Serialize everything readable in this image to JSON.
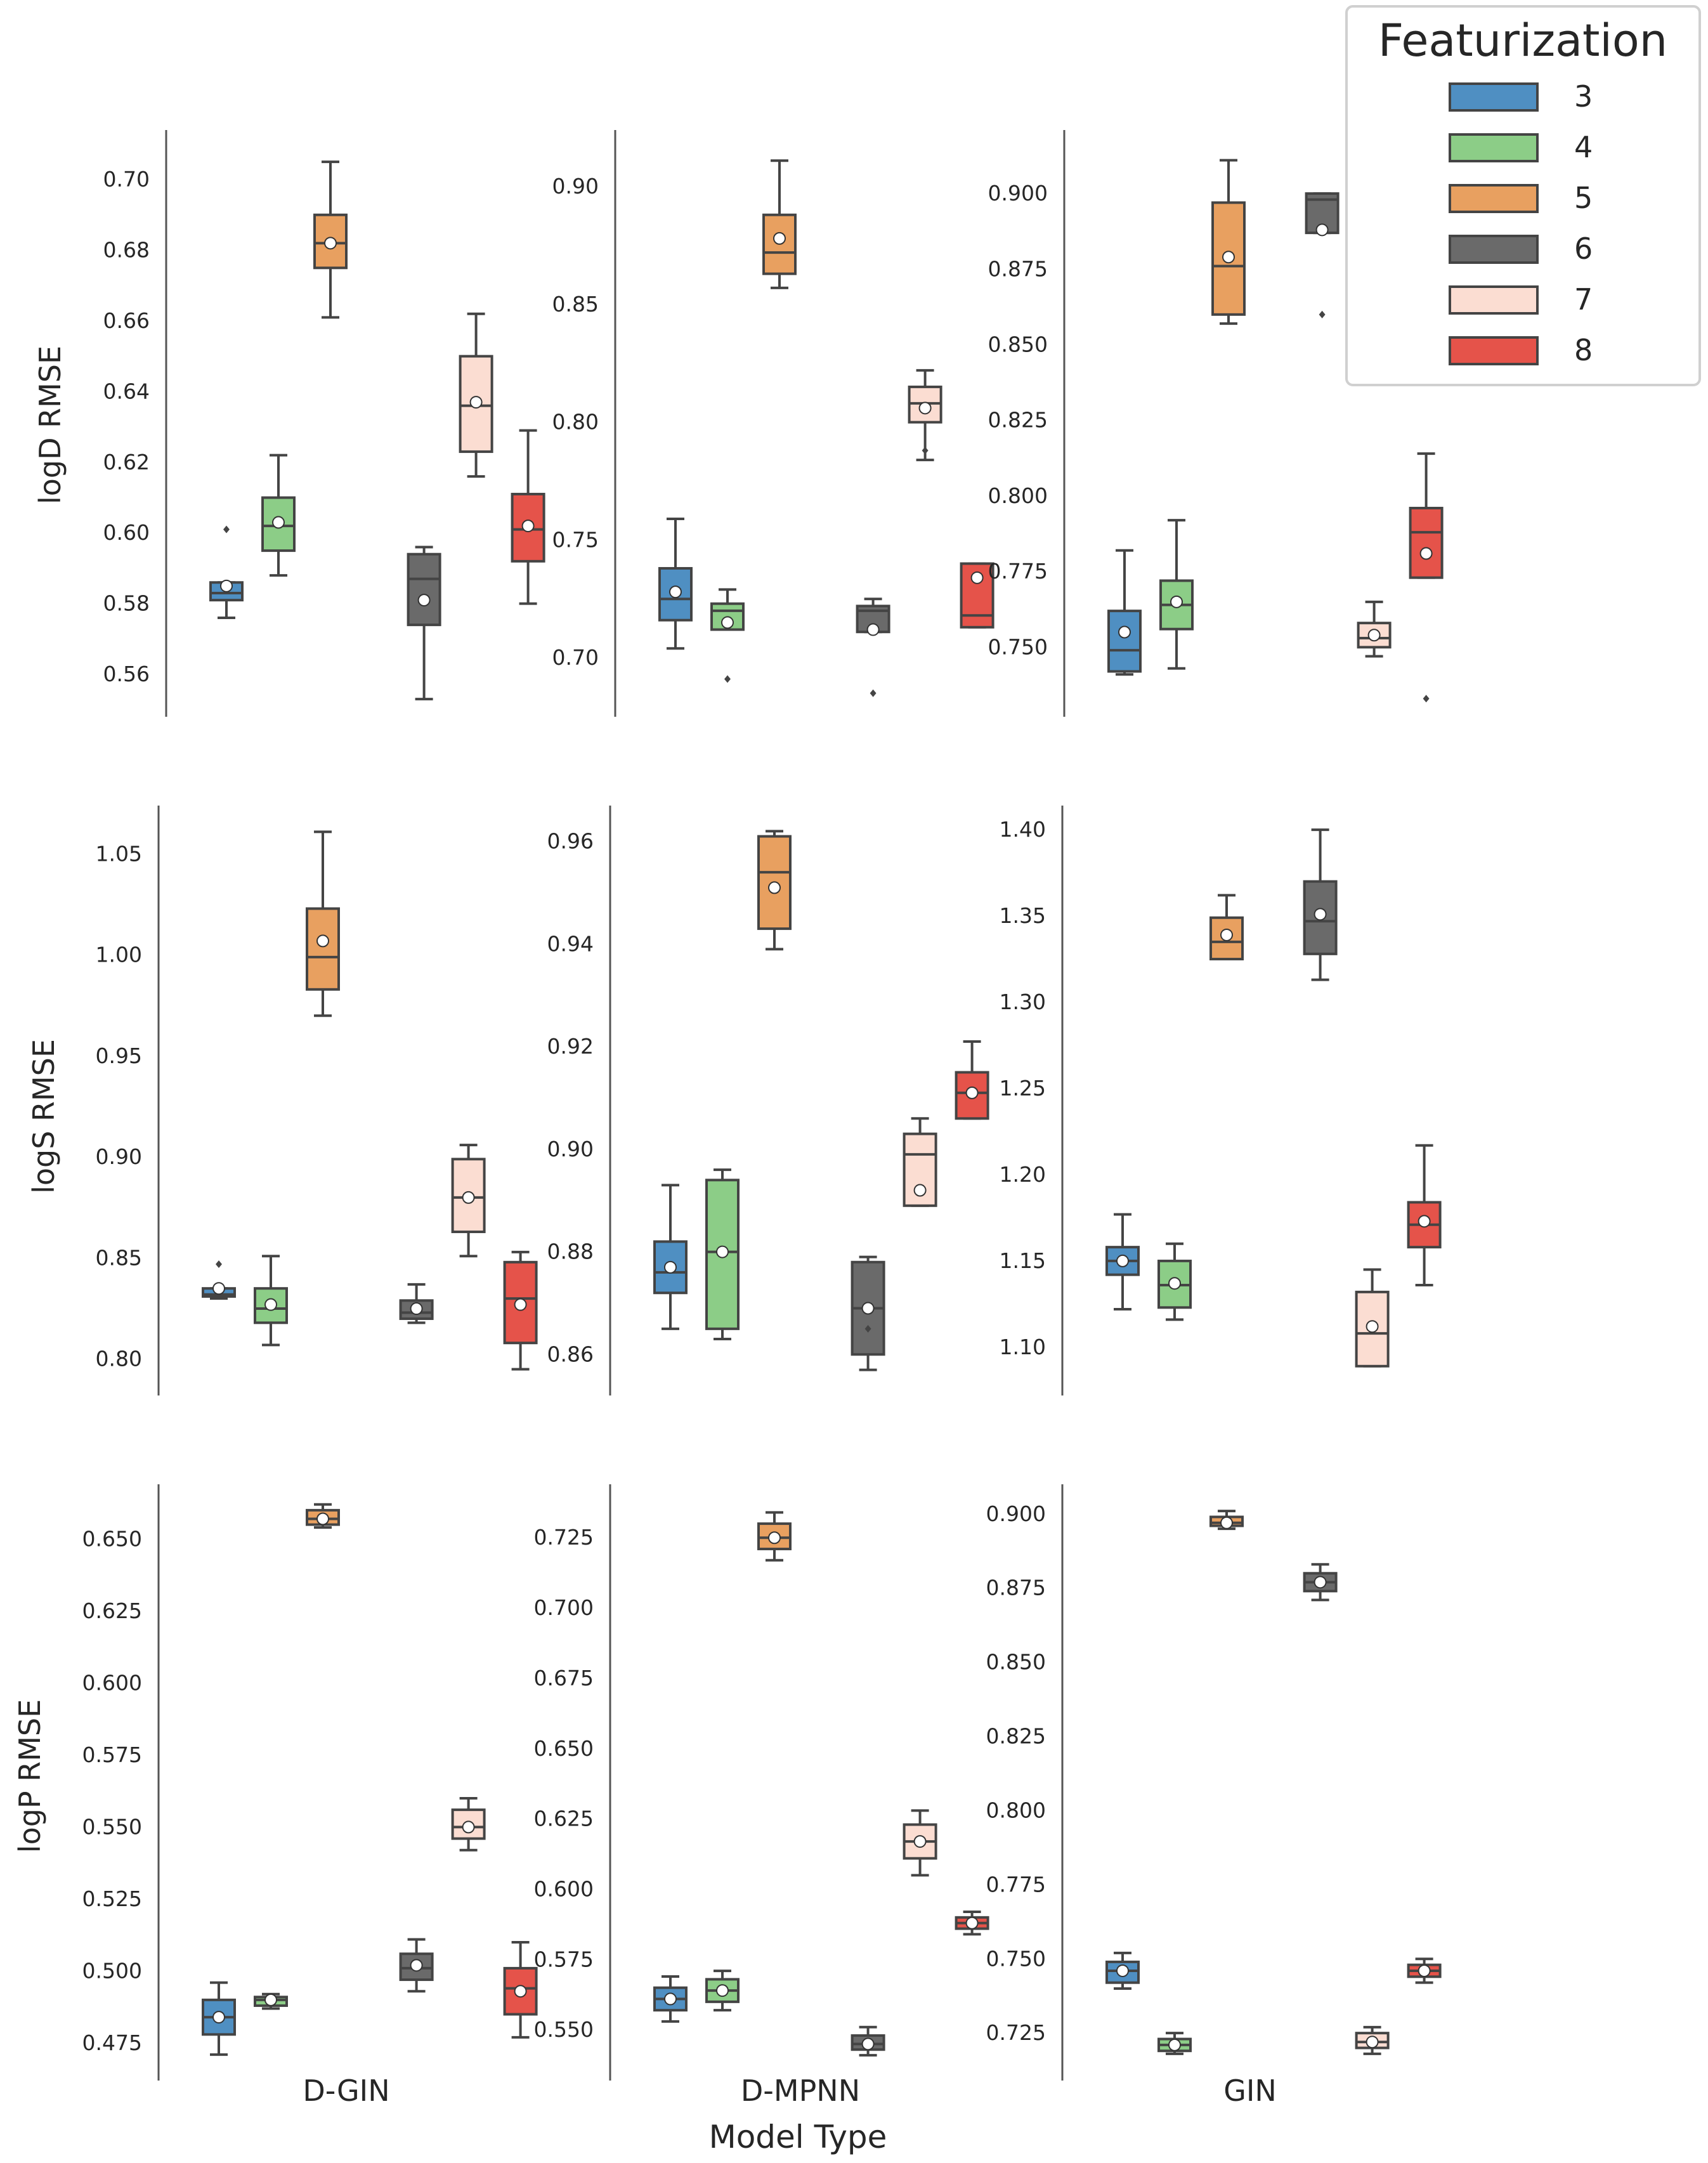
{
  "chart_data": {
    "type": "box",
    "title": "",
    "xlabel": "Model Type",
    "categories": [
      "D-GIN",
      "D-MPNN",
      "GIN"
    ],
    "legend": {
      "title": "Featurization",
      "placement": "top-right",
      "entries": [
        "3",
        "4",
        "5",
        "6",
        "7",
        "8"
      ],
      "colors": [
        "#4f8fc2",
        "#8ccd87",
        "#e8a060",
        "#6a6a6a",
        "#fbddd2",
        "#e5534a"
      ]
    },
    "rows": [
      {
        "ylabel": "logD RMSE",
        "panels": [
          {
            "model": "D-GIN",
            "ylim": [
              0.548,
              0.714
            ],
            "ticks": [
              "0.56",
              "0.58",
              "0.60",
              "0.62",
              "0.64",
              "0.66",
              "0.68",
              "0.70"
            ],
            "boxes": [
              {
                "feat": "3",
                "wlo": 0.576,
                "q1": 0.581,
                "med": 0.583,
                "q3": 0.586,
                "whi": 0.586,
                "mean": 0.585,
                "outliers": [
                  0.601
                ]
              },
              {
                "feat": "4",
                "wlo": 0.588,
                "q1": 0.595,
                "med": 0.602,
                "q3": 0.61,
                "whi": 0.622,
                "mean": 0.603,
                "outliers": []
              },
              {
                "feat": "5",
                "wlo": 0.661,
                "q1": 0.675,
                "med": 0.682,
                "q3": 0.69,
                "whi": 0.705,
                "mean": 0.682,
                "outliers": []
              },
              {
                "feat": "6",
                "wlo": 0.553,
                "q1": 0.574,
                "med": 0.587,
                "q3": 0.594,
                "whi": 0.596,
                "mean": 0.581,
                "outliers": []
              },
              {
                "feat": "7",
                "wlo": 0.616,
                "q1": 0.623,
                "med": 0.636,
                "q3": 0.65,
                "whi": 0.662,
                "mean": 0.637,
                "outliers": []
              },
              {
                "feat": "8",
                "wlo": 0.58,
                "q1": 0.592,
                "med": 0.601,
                "q3": 0.611,
                "whi": 0.629,
                "mean": 0.602,
                "outliers": []
              }
            ]
          },
          {
            "model": "D-MPNN",
            "ylim": [
              0.675,
              0.924
            ],
            "ticks": [
              "0.70",
              "0.75",
              "0.80",
              "0.85",
              "0.90"
            ],
            "boxes": [
              {
                "feat": "3",
                "wlo": 0.704,
                "q1": 0.716,
                "med": 0.725,
                "q3": 0.738,
                "whi": 0.759,
                "mean": 0.728,
                "outliers": []
              },
              {
                "feat": "4",
                "wlo": 0.712,
                "q1": 0.712,
                "med": 0.72,
                "q3": 0.723,
                "whi": 0.729,
                "mean": 0.715,
                "outliers": [
                  0.691
                ]
              },
              {
                "feat": "5",
                "wlo": 0.857,
                "q1": 0.863,
                "med": 0.872,
                "q3": 0.888,
                "whi": 0.911,
                "mean": 0.878,
                "outliers": []
              },
              {
                "feat": "6",
                "wlo": 0.711,
                "q1": 0.711,
                "med": 0.72,
                "q3": 0.722,
                "whi": 0.725,
                "mean": 0.712,
                "outliers": [
                  0.685
                ]
              },
              {
                "feat": "7",
                "wlo": 0.784,
                "q1": 0.8,
                "med": 0.808,
                "q3": 0.815,
                "whi": 0.822,
                "mean": 0.806,
                "outliers": [
                  0.788
                ]
              },
              {
                "feat": "8",
                "wlo": 0.713,
                "q1": 0.713,
                "med": 0.718,
                "q3": 0.74,
                "whi": 0.74,
                "mean": 0.734,
                "outliers": []
              }
            ]
          },
          {
            "model": "GIN",
            "ylim": [
              0.727,
              0.921
            ],
            "ticks": [
              "0.750",
              "0.775",
              "0.800",
              "0.825",
              "0.850",
              "0.875",
              "0.900"
            ],
            "boxes": [
              {
                "feat": "3",
                "wlo": 0.741,
                "q1": 0.742,
                "med": 0.749,
                "q3": 0.762,
                "whi": 0.782,
                "mean": 0.755,
                "outliers": []
              },
              {
                "feat": "4",
                "wlo": 0.743,
                "q1": 0.756,
                "med": 0.764,
                "q3": 0.772,
                "whi": 0.792,
                "mean": 0.765,
                "outliers": []
              },
              {
                "feat": "5",
                "wlo": 0.857,
                "q1": 0.86,
                "med": 0.876,
                "q3": 0.897,
                "whi": 0.911,
                "mean": 0.879,
                "outliers": []
              },
              {
                "feat": "6",
                "wlo": 0.887,
                "q1": 0.887,
                "med": 0.898,
                "q3": 0.9,
                "whi": 0.9,
                "mean": 0.888,
                "outliers": [
                  0.86
                ]
              },
              {
                "feat": "7",
                "wlo": 0.747,
                "q1": 0.75,
                "med": 0.753,
                "q3": 0.758,
                "whi": 0.765,
                "mean": 0.754,
                "outliers": []
              },
              {
                "feat": "8",
                "wlo": 0.773,
                "q1": 0.773,
                "med": 0.788,
                "q3": 0.796,
                "whi": 0.814,
                "mean": 0.781,
                "outliers": [
                  0.733
                ]
              }
            ]
          }
        ]
      },
      {
        "ylabel": "logS RMSE",
        "panels": [
          {
            "model": "D-GIN",
            "ylim": [
              0.782,
              1.074
            ],
            "ticks": [
              "0.80",
              "0.85",
              "0.90",
              "0.95",
              "1.00",
              "1.05"
            ],
            "boxes": [
              {
                "feat": "3",
                "wlo": 0.83,
                "q1": 0.831,
                "med": 0.832,
                "q3": 0.835,
                "whi": 0.835,
                "mean": 0.835,
                "outliers": [
                  0.847
                ]
              },
              {
                "feat": "4",
                "wlo": 0.807,
                "q1": 0.818,
                "med": 0.825,
                "q3": 0.835,
                "whi": 0.851,
                "mean": 0.827,
                "outliers": []
              },
              {
                "feat": "5",
                "wlo": 0.97,
                "q1": 0.983,
                "med": 0.999,
                "q3": 1.023,
                "whi": 1.061,
                "mean": 1.007,
                "outliers": []
              },
              {
                "feat": "6",
                "wlo": 0.818,
                "q1": 0.82,
                "med": 0.823,
                "q3": 0.829,
                "whi": 0.837,
                "mean": 0.825,
                "outliers": []
              },
              {
                "feat": "7",
                "wlo": 0.851,
                "q1": 0.863,
                "med": 0.88,
                "q3": 0.899,
                "whi": 0.906,
                "mean": 0.88,
                "outliers": []
              },
              {
                "feat": "8",
                "wlo": 0.795,
                "q1": 0.808,
                "med": 0.83,
                "q3": 0.848,
                "whi": 0.853,
                "mean": 0.827,
                "outliers": []
              }
            ]
          },
          {
            "model": "D-MPNN",
            "ylim": [
              0.852,
              0.967
            ],
            "ticks": [
              "0.86",
              "0.88",
              "0.90",
              "0.92",
              "0.94",
              "0.96"
            ],
            "boxes": [
              {
                "feat": "3",
                "wlo": 0.865,
                "q1": 0.872,
                "med": 0.876,
                "q3": 0.882,
                "whi": 0.893,
                "mean": 0.877,
                "outliers": []
              },
              {
                "feat": "4",
                "wlo": 0.863,
                "q1": 0.865,
                "med": 0.88,
                "q3": 0.894,
                "whi": 0.896,
                "mean": 0.88,
                "outliers": []
              },
              {
                "feat": "5",
                "wlo": 0.939,
                "q1": 0.943,
                "med": 0.954,
                "q3": 0.961,
                "whi": 0.962,
                "mean": 0.951,
                "outliers": []
              },
              {
                "feat": "6",
                "wlo": 0.857,
                "q1": 0.86,
                "med": 0.869,
                "q3": 0.878,
                "whi": 0.879,
                "mean": 0.869,
                "outliers": [
                  0.865
                ]
              },
              {
                "feat": "7",
                "wlo": 0.889,
                "q1": 0.889,
                "med": 0.899,
                "q3": 0.903,
                "whi": 0.906,
                "mean": 0.892,
                "outliers": []
              },
              {
                "feat": "8",
                "wlo": 0.906,
                "q1": 0.906,
                "med": 0.911,
                "q3": 0.915,
                "whi": 0.921,
                "mean": 0.911,
                "outliers": []
              }
            ]
          },
          {
            "model": "GIN",
            "ylim": [
              1.072,
              1.414
            ],
            "ticks": [
              "1.10",
              "1.15",
              "1.20",
              "1.25",
              "1.30",
              "1.35",
              "1.40"
            ],
            "boxes": [
              {
                "feat": "3",
                "wlo": 1.122,
                "q1": 1.142,
                "med": 1.15,
                "q3": 1.158,
                "whi": 1.177,
                "mean": 1.15,
                "outliers": []
              },
              {
                "feat": "4",
                "wlo": 1.116,
                "q1": 1.123,
                "med": 1.136,
                "q3": 1.15,
                "whi": 1.16,
                "mean": 1.137,
                "outliers": []
              },
              {
                "feat": "5",
                "wlo": 1.325,
                "q1": 1.325,
                "med": 1.335,
                "q3": 1.349,
                "whi": 1.362,
                "mean": 1.339,
                "outliers": []
              },
              {
                "feat": "6",
                "wlo": 1.313,
                "q1": 1.328,
                "med": 1.347,
                "q3": 1.37,
                "whi": 1.4,
                "mean": 1.351,
                "outliers": []
              },
              {
                "feat": "7",
                "wlo": 1.089,
                "q1": 1.089,
                "med": 1.108,
                "q3": 1.132,
                "whi": 1.145,
                "mean": 1.112,
                "outliers": []
              },
              {
                "feat": "8",
                "wlo": 1.136,
                "q1": 1.158,
                "med": 1.171,
                "q3": 1.184,
                "whi": 1.217,
                "mean": 1.173,
                "outliers": []
              }
            ]
          }
        ]
      },
      {
        "ylabel": "logP RMSE",
        "panels": [
          {
            "model": "D-GIN",
            "ylim": [
              0.462,
              0.669
            ],
            "ticks": [
              "0.475",
              "0.500",
              "0.525",
              "0.550",
              "0.575",
              "0.600",
              "0.625",
              "0.650"
            ],
            "boxes": [
              {
                "feat": "3",
                "wlo": 0.471,
                "q1": 0.478,
                "med": 0.484,
                "q3": 0.49,
                "whi": 0.496,
                "mean": 0.484,
                "outliers": []
              },
              {
                "feat": "4",
                "wlo": 0.487,
                "q1": 0.488,
                "med": 0.49,
                "q3": 0.491,
                "whi": 0.492,
                "mean": 0.49,
                "outliers": []
              },
              {
                "feat": "5",
                "wlo": 0.654,
                "q1": 0.655,
                "med": 0.657,
                "q3": 0.66,
                "whi": 0.662,
                "mean": 0.657,
                "outliers": []
              },
              {
                "feat": "6",
                "wlo": 0.493,
                "q1": 0.497,
                "med": 0.501,
                "q3": 0.506,
                "whi": 0.511,
                "mean": 0.502,
                "outliers": []
              },
              {
                "feat": "7",
                "wlo": 0.542,
                "q1": 0.546,
                "med": 0.55,
                "q3": 0.556,
                "whi": 0.56,
                "mean": 0.55,
                "outliers": []
              },
              {
                "feat": "8",
                "wlo": 0.477,
                "q1": 0.485,
                "med": 0.494,
                "q3": 0.501,
                "whi": 0.51,
                "mean": 0.493,
                "outliers": []
              }
            ]
          },
          {
            "model": "D-MPNN",
            "ylim": [
              0.532,
              0.744
            ],
            "ticks": [
              "0.550",
              "0.575",
              "0.600",
              "0.625",
              "0.650",
              "0.675",
              "0.700",
              "0.725"
            ],
            "boxes": [
              {
                "feat": "3",
                "wlo": 0.553,
                "q1": 0.557,
                "med": 0.561,
                "q3": 0.565,
                "whi": 0.569,
                "mean": 0.561,
                "outliers": []
              },
              {
                "feat": "4",
                "wlo": 0.557,
                "q1": 0.56,
                "med": 0.564,
                "q3": 0.568,
                "whi": 0.571,
                "mean": 0.564,
                "outliers": []
              },
              {
                "feat": "5",
                "wlo": 0.717,
                "q1": 0.721,
                "med": 0.725,
                "q3": 0.73,
                "whi": 0.734,
                "mean": 0.725,
                "outliers": []
              },
              {
                "feat": "6",
                "wlo": 0.541,
                "q1": 0.543,
                "med": 0.545,
                "q3": 0.548,
                "whi": 0.551,
                "mean": 0.545,
                "outliers": []
              },
              {
                "feat": "7",
                "wlo": 0.605,
                "q1": 0.611,
                "med": 0.617,
                "q3": 0.623,
                "whi": 0.628,
                "mean": 0.617,
                "outliers": []
              },
              {
                "feat": "8",
                "wlo": 0.584,
                "q1": 0.586,
                "med": 0.588,
                "q3": 0.59,
                "whi": 0.592,
                "mean": 0.588,
                "outliers": []
              }
            ]
          },
          {
            "model": "GIN",
            "ylim": [
              0.709,
              0.91
            ],
            "ticks": [
              "0.725",
              "0.750",
              "0.775",
              "0.800",
              "0.825",
              "0.850",
              "0.875",
              "0.900"
            ],
            "boxes": [
              {
                "feat": "3",
                "wlo": 0.74,
                "q1": 0.742,
                "med": 0.746,
                "q3": 0.749,
                "whi": 0.752,
                "mean": 0.746,
                "outliers": []
              },
              {
                "feat": "4",
                "wlo": 0.718,
                "q1": 0.719,
                "med": 0.721,
                "q3": 0.723,
                "whi": 0.725,
                "mean": 0.721,
                "outliers": []
              },
              {
                "feat": "5",
                "wlo": 0.895,
                "q1": 0.896,
                "med": 0.897,
                "q3": 0.899,
                "whi": 0.901,
                "mean": 0.897,
                "outliers": []
              },
              {
                "feat": "6",
                "wlo": 0.871,
                "q1": 0.874,
                "med": 0.877,
                "q3": 0.88,
                "whi": 0.883,
                "mean": 0.877,
                "outliers": []
              },
              {
                "feat": "7",
                "wlo": 0.718,
                "q1": 0.72,
                "med": 0.722,
                "q3": 0.725,
                "whi": 0.727,
                "mean": 0.722,
                "outliers": []
              },
              {
                "feat": "8",
                "wlo": 0.742,
                "q1": 0.744,
                "med": 0.746,
                "q3": 0.748,
                "whi": 0.75,
                "mean": 0.746,
                "outliers": []
              }
            ]
          }
        ]
      }
    ]
  }
}
